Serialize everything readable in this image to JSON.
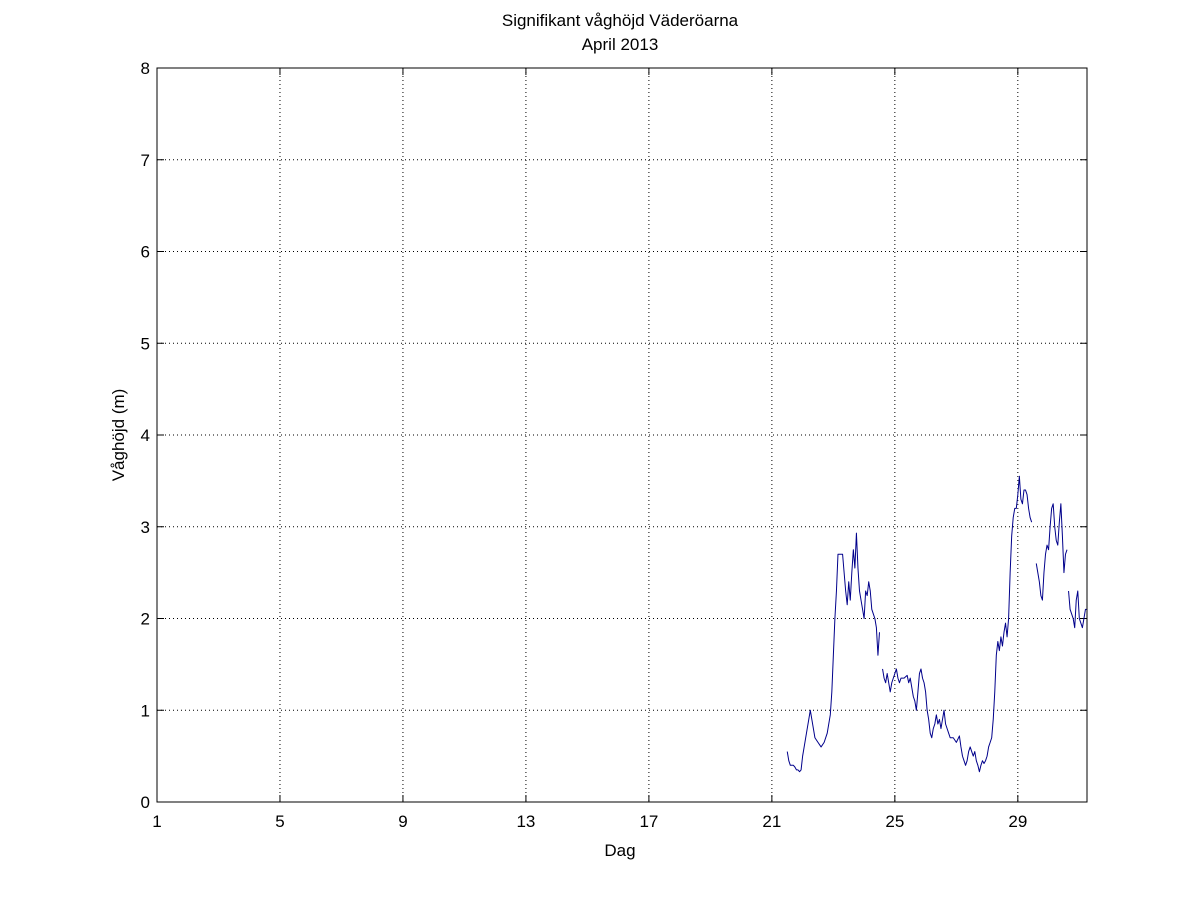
{
  "chart_data": {
    "type": "line",
    "title": "Signifikant våghöjd Väderöarna",
    "subtitle": "April 2013",
    "xlabel": "Dag",
    "ylabel": "Våghöjd (m)",
    "xlim": [
      1,
      31.25
    ],
    "ylim": [
      0,
      8
    ],
    "xticks": [
      1,
      5,
      9,
      13,
      17,
      21,
      25,
      29
    ],
    "yticks": [
      0,
      1,
      2,
      3,
      4,
      5,
      6,
      7,
      8
    ],
    "grid": true,
    "line_color": "#00008b",
    "series": [
      {
        "segments": [
          [
            [
              21.5,
              0.55
            ],
            [
              21.55,
              0.45
            ],
            [
              21.6,
              0.4
            ],
            [
              21.7,
              0.4
            ],
            [
              21.75,
              0.38
            ],
            [
              21.8,
              0.35
            ],
            [
              21.85,
              0.35
            ],
            [
              21.9,
              0.33
            ],
            [
              21.95,
              0.35
            ],
            [
              22.0,
              0.5
            ],
            [
              22.05,
              0.6
            ],
            [
              22.1,
              0.7
            ],
            [
              22.15,
              0.8
            ],
            [
              22.2,
              0.9
            ],
            [
              22.25,
              1.0
            ],
            [
              22.3,
              0.9
            ],
            [
              22.35,
              0.8
            ],
            [
              22.4,
              0.7
            ],
            [
              22.5,
              0.65
            ],
            [
              22.6,
              0.6
            ],
            [
              22.7,
              0.65
            ],
            [
              22.8,
              0.75
            ],
            [
              22.9,
              0.95
            ],
            [
              22.95,
              1.2
            ],
            [
              23.0,
              1.6
            ],
            [
              23.05,
              2.0
            ],
            [
              23.1,
              2.3
            ],
            [
              23.15,
              2.7
            ],
            [
              23.2,
              2.7
            ],
            [
              23.3,
              2.7
            ],
            [
              23.35,
              2.5
            ],
            [
              23.4,
              2.3
            ],
            [
              23.45,
              2.15
            ],
            [
              23.5,
              2.4
            ],
            [
              23.55,
              2.2
            ],
            [
              23.6,
              2.5
            ],
            [
              23.65,
              2.75
            ],
            [
              23.7,
              2.55
            ],
            [
              23.75,
              2.93
            ],
            [
              23.8,
              2.55
            ],
            [
              23.85,
              2.3
            ],
            [
              23.9,
              2.2
            ],
            [
              23.95,
              2.1
            ],
            [
              24.0,
              2.0
            ],
            [
              24.05,
              2.3
            ],
            [
              24.1,
              2.25
            ],
            [
              24.15,
              2.4
            ],
            [
              24.2,
              2.3
            ],
            [
              24.25,
              2.1
            ],
            [
              24.3,
              2.05
            ],
            [
              24.35,
              2.0
            ],
            [
              24.4,
              1.9
            ],
            [
              24.45,
              1.6
            ],
            [
              24.5,
              1.85
            ]
          ],
          [
            [
              24.6,
              1.45
            ],
            [
              24.65,
              1.35
            ],
            [
              24.7,
              1.3
            ],
            [
              24.75,
              1.4
            ],
            [
              24.8,
              1.3
            ],
            [
              24.85,
              1.2
            ],
            [
              24.9,
              1.3
            ],
            [
              24.95,
              1.35
            ],
            [
              25.0,
              1.4
            ],
            [
              25.05,
              1.45
            ],
            [
              25.1,
              1.35
            ],
            [
              25.15,
              1.3
            ],
            [
              25.2,
              1.35
            ],
            [
              25.3,
              1.35
            ],
            [
              25.4,
              1.38
            ],
            [
              25.45,
              1.3
            ],
            [
              25.5,
              1.35
            ],
            [
              25.55,
              1.25
            ],
            [
              25.6,
              1.15
            ],
            [
              25.65,
              1.1
            ],
            [
              25.7,
              1.0
            ],
            [
              25.75,
              1.2
            ],
            [
              25.8,
              1.4
            ],
            [
              25.85,
              1.45
            ],
            [
              25.9,
              1.35
            ],
            [
              25.95,
              1.3
            ],
            [
              26.0,
              1.2
            ],
            [
              26.05,
              1.0
            ],
            [
              26.1,
              0.9
            ],
            [
              26.15,
              0.75
            ],
            [
              26.2,
              0.7
            ],
            [
              26.25,
              0.8
            ],
            [
              26.3,
              0.85
            ],
            [
              26.35,
              0.95
            ],
            [
              26.4,
              0.85
            ],
            [
              26.45,
              0.9
            ],
            [
              26.5,
              0.8
            ],
            [
              26.55,
              0.9
            ],
            [
              26.6,
              1.0
            ],
            [
              26.65,
              0.85
            ],
            [
              26.7,
              0.8
            ],
            [
              26.75,
              0.75
            ],
            [
              26.8,
              0.7
            ],
            [
              26.9,
              0.7
            ],
            [
              27.0,
              0.65
            ],
            [
              27.1,
              0.72
            ],
            [
              27.15,
              0.6
            ],
            [
              27.2,
              0.5
            ],
            [
              27.25,
              0.45
            ],
            [
              27.3,
              0.4
            ],
            [
              27.35,
              0.45
            ],
            [
              27.4,
              0.55
            ],
            [
              27.45,
              0.6
            ],
            [
              27.5,
              0.55
            ],
            [
              27.55,
              0.5
            ],
            [
              27.6,
              0.55
            ],
            [
              27.65,
              0.45
            ],
            [
              27.7,
              0.4
            ],
            [
              27.75,
              0.33
            ],
            [
              27.8,
              0.4
            ],
            [
              27.85,
              0.45
            ],
            [
              27.9,
              0.42
            ],
            [
              27.95,
              0.45
            ],
            [
              28.0,
              0.5
            ],
            [
              28.05,
              0.6
            ],
            [
              28.1,
              0.65
            ],
            [
              28.15,
              0.7
            ],
            [
              28.2,
              0.9
            ],
            [
              28.25,
              1.2
            ],
            [
              28.3,
              1.6
            ],
            [
              28.35,
              1.75
            ],
            [
              28.4,
              1.65
            ],
            [
              28.45,
              1.8
            ],
            [
              28.5,
              1.7
            ],
            [
              28.55,
              1.85
            ],
            [
              28.6,
              1.95
            ],
            [
              28.65,
              1.8
            ],
            [
              28.7,
              2.0
            ],
            [
              28.75,
              2.5
            ],
            [
              28.8,
              2.9
            ],
            [
              28.85,
              3.1
            ],
            [
              28.9,
              3.2
            ],
            [
              28.95,
              3.2
            ],
            [
              29.0,
              3.35
            ],
            [
              29.05,
              3.55
            ],
            [
              29.1,
              3.3
            ],
            [
              29.15,
              3.25
            ],
            [
              29.2,
              3.4
            ],
            [
              29.25,
              3.4
            ],
            [
              29.3,
              3.35
            ],
            [
              29.35,
              3.2
            ],
            [
              29.4,
              3.1
            ],
            [
              29.45,
              3.05
            ]
          ],
          [
            [
              29.6,
              2.6
            ],
            [
              29.65,
              2.5
            ],
            [
              29.7,
              2.4
            ],
            [
              29.75,
              2.25
            ],
            [
              29.8,
              2.2
            ],
            [
              29.85,
              2.5
            ],
            [
              29.9,
              2.7
            ],
            [
              29.95,
              2.8
            ],
            [
              30.0,
              2.75
            ],
            [
              30.05,
              3.0
            ],
            [
              30.1,
              3.2
            ],
            [
              30.15,
              3.25
            ],
            [
              30.2,
              3.0
            ],
            [
              30.25,
              2.85
            ],
            [
              30.3,
              2.8
            ],
            [
              30.35,
              3.05
            ],
            [
              30.4,
              3.25
            ],
            [
              30.45,
              2.9
            ],
            [
              30.5,
              2.5
            ],
            [
              30.55,
              2.7
            ],
            [
              30.6,
              2.75
            ]
          ],
          [
            [
              30.65,
              2.3
            ],
            [
              30.7,
              2.1
            ],
            [
              30.75,
              2.05
            ],
            [
              30.8,
              2.0
            ],
            [
              30.85,
              1.9
            ],
            [
              30.9,
              2.2
            ],
            [
              30.95,
              2.3
            ],
            [
              31.0,
              2.0
            ],
            [
              31.05,
              1.95
            ],
            [
              31.1,
              1.9
            ],
            [
              31.15,
              2.0
            ],
            [
              31.2,
              2.1
            ],
            [
              31.25,
              2.1
            ]
          ]
        ]
      }
    ]
  }
}
